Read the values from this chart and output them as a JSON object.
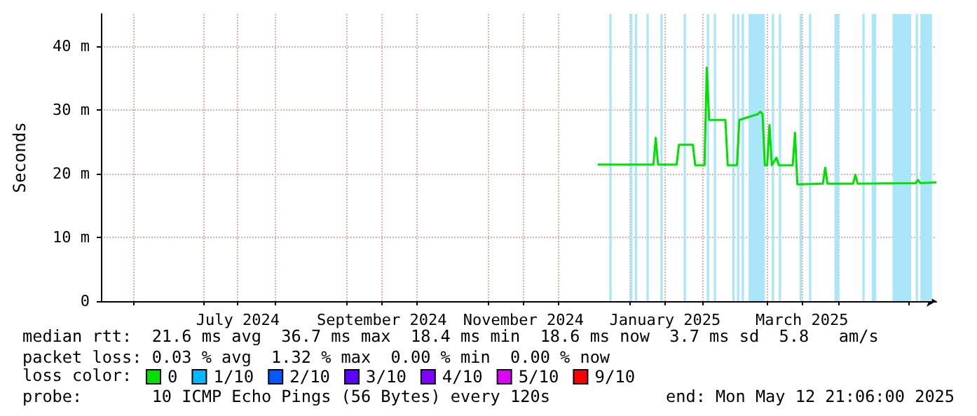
{
  "chart_data": {
    "type": "line",
    "ylabel": "Seconds",
    "xlim": [
      "2024-05-18",
      "2025-05-12T21:06"
    ],
    "xticks": [
      {
        "value": "2024-06-01",
        "label": null
      },
      {
        "value": "2024-07-01",
        "label": null
      },
      {
        "value": "2024-07-16",
        "label": "July 2024"
      },
      {
        "value": "2024-08-01",
        "label": null
      },
      {
        "value": "2024-09-01",
        "label": null
      },
      {
        "value": "2024-09-16",
        "label": "September 2024"
      },
      {
        "value": "2024-10-01",
        "label": null
      },
      {
        "value": "2024-11-01",
        "label": null
      },
      {
        "value": "2024-11-16",
        "label": "November 2024"
      },
      {
        "value": "2024-12-01",
        "label": null
      },
      {
        "value": "2025-01-01",
        "label": null
      },
      {
        "value": "2025-01-16",
        "label": "January 2025"
      },
      {
        "value": "2025-02-01",
        "label": null
      },
      {
        "value": "2025-03-01",
        "label": null
      },
      {
        "value": "2025-03-16",
        "label": "March 2025"
      },
      {
        "value": "2025-04-01",
        "label": null
      },
      {
        "value": "2025-05-01",
        "label": null
      }
    ],
    "ylim": [
      0,
      45
    ],
    "yticks": [
      0,
      {
        "value": 10,
        "label": "10 m"
      },
      {
        "value": 20,
        "label": "20 m"
      },
      {
        "value": 30,
        "label": "30 m"
      },
      {
        "value": 40,
        "label": "40 m"
      }
    ],
    "grid": true,
    "legend": "bottom",
    "marker": "none",
    "line_style": "solid",
    "series": [
      {
        "name": "0",
        "color": "#00e000",
        "x": [
          "2024-12-18",
          "2025-01-11",
          "2025-01-12",
          "2025-01-13",
          "2025-01-21",
          "2025-01-22",
          "2025-01-28",
          "2025-01-29",
          "2025-02-02",
          "2025-02-03",
          "2025-02-04",
          "2025-02-11",
          "2025-02-12",
          "2025-02-16",
          "2025-02-17",
          "2025-02-25",
          "2025-02-26",
          "2025-02-27",
          "2025-02-28",
          "2025-03-01",
          "2025-03-02",
          "2025-03-03",
          "2025-03-05",
          "2025-03-06",
          "2025-03-12",
          "2025-03-13",
          "2025-03-14",
          "2025-03-25",
          "2025-03-26",
          "2025-03-27",
          "2025-04-07",
          "2025-04-08",
          "2025-04-09",
          "2025-05-04",
          "2025-05-05",
          "2025-05-06",
          "2025-05-12T21:06"
        ],
        "values": [
          21.4,
          21.4,
          25.6,
          21.4,
          21.4,
          24.5,
          24.5,
          21.3,
          21.3,
          36.6,
          28.4,
          28.4,
          21.3,
          21.3,
          28.4,
          29.3,
          29.7,
          29.3,
          21.3,
          21.3,
          27.6,
          21.3,
          22.5,
          21.3,
          21.3,
          26.4,
          18.3,
          18.4,
          20.9,
          18.4,
          18.4,
          19.8,
          18.4,
          18.5,
          19.0,
          18.5,
          18.6
        ]
      },
      {
        "name": "1/10",
        "color": "#00b8ff"
      },
      {
        "name": "2/10",
        "color": "#0059ff"
      },
      {
        "name": "3/10",
        "color": "#5e00ff"
      },
      {
        "name": "4/10",
        "color": "#7e00ff"
      },
      {
        "name": "5/10",
        "color": "#dd00ff"
      },
      {
        "name": "9/10",
        "color": "#ff0000"
      }
    ],
    "bands": [
      {
        "axis": "x",
        "from": "2024-12-23",
        "to": "2024-12-24",
        "color": "#aae6fa"
      },
      {
        "axis": "x",
        "from": "2025-01-01",
        "to": "2025-01-02",
        "color": "#aae6fa"
      },
      {
        "axis": "x",
        "from": "2025-01-03",
        "to": "2025-01-04",
        "color": "#aae6fa"
      },
      {
        "axis": "x",
        "from": "2025-01-08",
        "to": "2025-01-09",
        "color": "#aae6fa"
      },
      {
        "axis": "x",
        "from": "2025-01-14",
        "to": "2025-01-15",
        "color": "#aae6fa"
      },
      {
        "axis": "x",
        "from": "2025-01-24",
        "to": "2025-01-25",
        "color": "#aae6fa"
      },
      {
        "axis": "x",
        "from": "2025-02-03",
        "to": "2025-02-04",
        "color": "#aae6fa"
      },
      {
        "axis": "x",
        "from": "2025-02-06",
        "to": "2025-02-07",
        "color": "#aae6fa"
      },
      {
        "axis": "x",
        "from": "2025-02-14",
        "to": "2025-02-15",
        "color": "#aae6fa"
      },
      {
        "axis": "x",
        "from": "2025-02-16",
        "to": "2025-02-17",
        "color": "#aae6fa"
      },
      {
        "axis": "x",
        "from": "2025-02-18",
        "to": "2025-02-19",
        "color": "#aae6fa"
      },
      {
        "axis": "x",
        "from": "2025-02-21",
        "to": "2025-02-28",
        "color": "#aae6fa"
      },
      {
        "axis": "x",
        "from": "2025-03-03",
        "to": "2025-03-04",
        "color": "#aae6fa"
      },
      {
        "axis": "x",
        "from": "2025-03-06",
        "to": "2025-03-07",
        "color": "#aae6fa"
      },
      {
        "axis": "x",
        "from": "2025-03-15",
        "to": "2025-03-16",
        "color": "#aae6fa"
      },
      {
        "axis": "x",
        "from": "2025-03-19",
        "to": "2025-03-20",
        "color": "#aae6fa"
      },
      {
        "axis": "x",
        "from": "2025-03-30",
        "to": "2025-04-01",
        "color": "#aae6fa"
      },
      {
        "axis": "x",
        "from": "2025-04-11",
        "to": "2025-04-12",
        "color": "#aae6fa"
      },
      {
        "axis": "x",
        "from": "2025-04-15",
        "to": "2025-04-17",
        "color": "#aae6fa"
      },
      {
        "axis": "x",
        "from": "2025-04-24",
        "to": "2025-05-02",
        "color": "#aae6fa"
      },
      {
        "axis": "x",
        "from": "2025-05-04",
        "to": "2025-05-05",
        "color": "#aae6fa"
      },
      {
        "axis": "x",
        "from": "2025-05-06",
        "to": "2025-05-11",
        "color": "#aae6fa"
      }
    ],
    "annotations": [
      "median rtt:  21.6 ms avg  36.7 ms max  18.4 ms min  18.6 ms now  3.7 ms sd  5.8   am/s",
      "packet loss: 0.03 % avg  1.32 % max  0.00 % min  0.00 % now",
      "loss color:",
      "probe:       10 ICMP Echo Pings (56 Bytes) every 120s",
      "end: Mon May 12 21:06:00 2025"
    ]
  }
}
